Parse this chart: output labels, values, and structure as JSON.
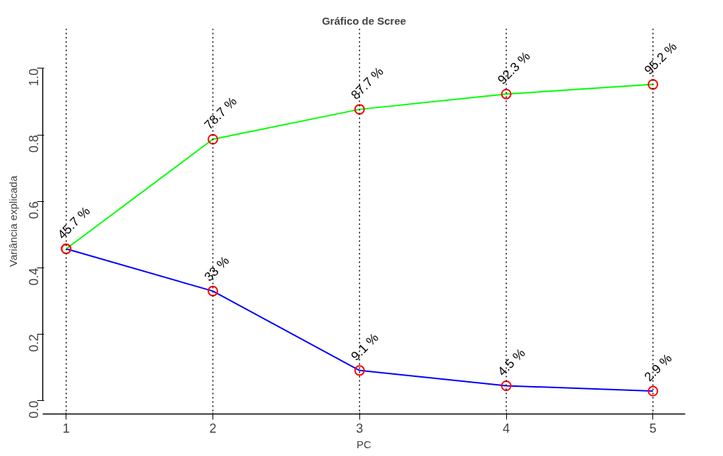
{
  "chart_data": {
    "type": "line",
    "title": "Gráfico de Scree",
    "xlabel": "PC",
    "ylabel": "Variância explicada",
    "x": [
      1,
      2,
      3,
      4,
      5
    ],
    "series": [
      {
        "color": "#0000ff",
        "values": [
          0.457,
          0.33,
          0.091,
          0.045,
          0.029
        ],
        "value_labels": [
          null,
          "33 %",
          "9.1 %",
          "4.5 %",
          "2.9 %"
        ]
      },
      {
        "color": "#00ff00",
        "values": [
          0.457,
          0.787,
          0.877,
          0.923,
          0.952
        ],
        "value_labels": [
          "45.7 %",
          "78.7 %",
          "87.7 %",
          "92.3 %",
          "95.2 %"
        ]
      }
    ],
    "xlim": [
      0.84,
      5.22
    ],
    "ylim": [
      -0.04,
      1.12
    ],
    "xticks": [
      1,
      2,
      3,
      4,
      5
    ],
    "yticks": [
      {
        "value": 0,
        "label": "0.0"
      },
      {
        "value": 0.2,
        "label": "0.2"
      },
      {
        "value": 0.4,
        "label": "0.4"
      },
      {
        "value": 0.6,
        "label": "0.6"
      },
      {
        "value": 0.8,
        "label": "0.8"
      },
      {
        "value": 1,
        "label": "1.0"
      }
    ],
    "ref_lines": [
      {
        "axis": "x",
        "value": 1,
        "line_style": "dotted",
        "color": "#000000"
      },
      {
        "axis": "x",
        "value": 2,
        "line_style": "dotted",
        "color": "#000000"
      },
      {
        "axis": "x",
        "value": 3,
        "line_style": "dotted",
        "color": "#000000"
      },
      {
        "axis": "x",
        "value": 4,
        "line_style": "dotted",
        "color": "#000000"
      },
      {
        "axis": "x",
        "value": 5,
        "line_style": "dotted",
        "color": "#000000"
      }
    ],
    "marker": "circle",
    "line_style": "solid",
    "grid": false
  }
}
